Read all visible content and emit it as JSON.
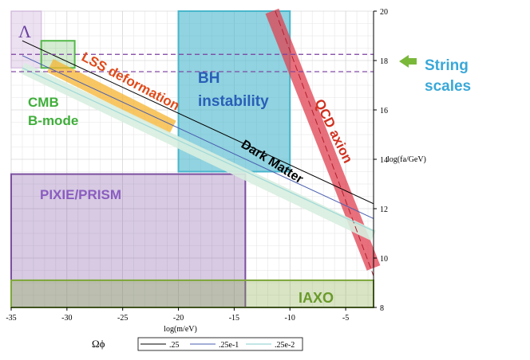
{
  "chart_data": {
    "type": "line",
    "xlabel": "log(m/eV)",
    "ylabel": "log(fa/GeV)",
    "xlim": [
      -35,
      -2.5
    ],
    "ylim": [
      8,
      20
    ],
    "x_ticks": [
      -35,
      -30,
      -25,
      -20,
      -15,
      -10,
      -5
    ],
    "x_tick_labels": [
      "-35",
      "-30",
      "-25",
      "-20",
      "-15",
      "-10",
      "-5"
    ],
    "y_ticks": [
      8,
      10,
      12,
      14,
      16,
      18,
      20
    ],
    "y_tick_labels": [
      "8",
      "10",
      "12",
      "14",
      "16",
      "18",
      "20"
    ],
    "grid": true,
    "series": [
      {
        "name": ".25",
        "x": [
          -34,
          -2.5
        ],
        "y": [
          18.8,
          12.2
        ]
      },
      {
        "name": ".25e-1",
        "x": [
          -34,
          -2.5
        ],
        "y": [
          18.2,
          11.6
        ]
      },
      {
        "name": ".25e-2",
        "x": [
          -34,
          -2.5
        ],
        "y": [
          17.7,
          11.1
        ]
      }
    ],
    "legend": {
      "title": "Ωϕ",
      "position": "bottom"
    },
    "regions": [
      {
        "label": "Λ",
        "x": [
          -35,
          -32.3
        ],
        "y": [
          17.7,
          20
        ],
        "color": "#c9a8d8"
      },
      {
        "label": "CMB B-mode",
        "x": [
          -32.3,
          -29.3
        ],
        "y": [
          17.7,
          18.8
        ],
        "color": "#55b84a"
      },
      {
        "label": "BH instability",
        "x": [
          -20,
          -10
        ],
        "y": [
          13.5,
          20
        ],
        "color": "#48b6cc"
      },
      {
        "label": "PIXIE/PRISM",
        "x": [
          -35,
          -14
        ],
        "y": [
          8,
          13.4
        ],
        "color": "#7b4fa0"
      },
      {
        "label": "IAXO",
        "x": [
          -35,
          -2.5
        ],
        "y": [
          8,
          9.1
        ],
        "color": "#7ea63a"
      }
    ],
    "bands": [
      {
        "label": "LSS deformation",
        "x": [
          -31.5,
          -20.5
        ],
        "y": [
          17.8,
          15.3
        ],
        "color": "#f5b430"
      },
      {
        "label": "QCD axion",
        "x": [
          -11.6,
          -2.5
        ],
        "y": [
          20,
          9.6
        ],
        "color": "#e04050"
      }
    ],
    "hlines": [
      {
        "y": 18.25,
        "color": "#7b3fa0"
      },
      {
        "y": 17.55,
        "color": "#7b3fa0"
      }
    ],
    "annotations": [
      {
        "text": "Dark Matter"
      },
      {
        "text": "String",
        "color": "#3aa8d8"
      },
      {
        "text": "scales",
        "color": "#3aa8d8"
      }
    ]
  }
}
